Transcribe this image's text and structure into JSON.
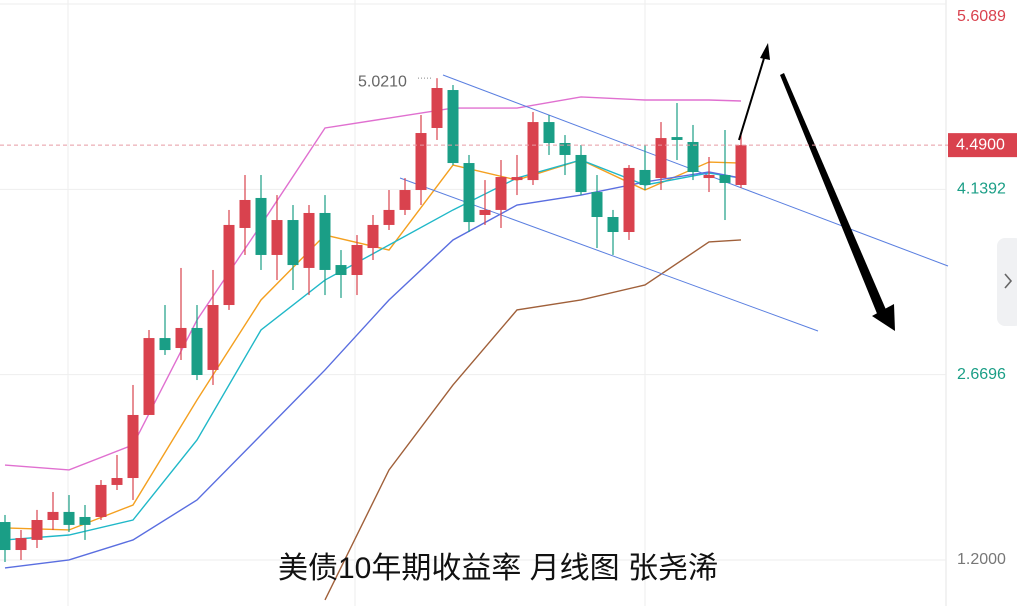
{
  "chart_data": {
    "type": "candlestick",
    "title": "美债10年期收益率 月线图 张尧浠",
    "ylim": [
      0.835,
      5.641
    ],
    "yticks": [
      {
        "value": 5.6089,
        "label": "5.6089",
        "color": "#d9424e"
      },
      {
        "value": 4.1392,
        "label": "4.1392",
        "color": "#1a9e86"
      },
      {
        "value": 2.6696,
        "label": "2.6696",
        "color": "#1a9e86"
      },
      {
        "value": 1.2,
        "label": "1.2000",
        "color": "#777777"
      }
    ],
    "last_price": {
      "value": 4.49,
      "label": "4.4900"
    },
    "max_label": {
      "value": 5.021,
      "label": "5.0210"
    },
    "up_color": "#d9424e",
    "down_color": "#1a9e86",
    "candles": {
      "open": [
        1.501,
        1.279,
        1.359,
        1.517,
        1.581,
        1.541,
        1.541,
        1.795,
        1.85,
        2.35,
        2.96,
        2.881,
        3.04,
        2.707,
        3.222,
        3.833,
        4.071,
        3.619,
        3.896,
        3.516,
        3.952,
        3.539,
        3.46,
        3.674,
        3.857,
        3.976,
        4.134,
        4.626,
        4.927,
        4.348,
        3.936,
        3.976,
        4.213,
        4.213,
        4.673,
        4.507,
        4.412,
        4.118,
        3.92,
        3.801,
        4.293,
        4.229,
        4.554,
        4.515,
        4.229,
        4.253,
        4.174
      ],
      "high": [
        1.557,
        1.438,
        1.597,
        1.739,
        1.715,
        1.636,
        1.834,
        2.033,
        2.588,
        3.024,
        3.222,
        3.516,
        3.222,
        3.5,
        3.976,
        4.253,
        4.253,
        4.094,
        4.015,
        4.015,
        4.094,
        3.658,
        3.777,
        3.936,
        4.134,
        4.229,
        4.729,
        5.021,
        4.967,
        4.412,
        4.213,
        4.372,
        4.412,
        4.753,
        4.729,
        4.57,
        4.491,
        4.253,
        3.976,
        4.332,
        4.491,
        4.673,
        4.824,
        4.65,
        4.396,
        4.61,
        4.586
      ],
      "low": [
        1.184,
        1.2,
        1.295,
        1.438,
        1.422,
        1.359,
        1.517,
        1.755,
        1.676,
        2.35,
        2.826,
        2.786,
        2.627,
        2.588,
        3.183,
        3.619,
        3.5,
        3.42,
        3.341,
        3.301,
        3.301,
        3.278,
        3.301,
        3.579,
        3.817,
        3.936,
        4.015,
        4.531,
        4.332,
        3.801,
        3.857,
        3.833,
        4.094,
        4.174,
        4.412,
        4.253,
        4.094,
        3.674,
        3.619,
        3.738,
        4.134,
        4.134,
        4.372,
        4.213,
        4.118,
        3.896,
        4.15
      ],
      "close": [
        1.279,
        1.374,
        1.517,
        1.581,
        1.478,
        1.478,
        1.795,
        1.85,
        2.35,
        2.96,
        2.865,
        3.04,
        2.667,
        3.222,
        3.857,
        4.055,
        3.619,
        3.896,
        3.539,
        3.952,
        3.5,
        3.46,
        3.698,
        3.857,
        3.976,
        4.134,
        4.586,
        4.943,
        4.348,
        3.88,
        3.976,
        4.237,
        4.237,
        4.673,
        4.507,
        4.412,
        4.118,
        3.92,
        3.801,
        4.309,
        4.174,
        4.546,
        4.531,
        4.277,
        4.253,
        4.19,
        4.49
      ]
    },
    "lines": [
      {
        "color": "#e070d0",
        "x": [
          0,
          4,
          8,
          12,
          16,
          20,
          24,
          28,
          32,
          36,
          40,
          44,
          46
        ],
        "values": [
          1.953,
          1.914,
          2.112,
          3.103,
          3.857,
          4.626,
          4.705,
          4.784,
          4.784,
          4.872,
          4.848,
          4.848,
          4.84
        ]
      },
      {
        "color": "#f4a020",
        "x": [
          0,
          4,
          8,
          12,
          16,
          20,
          24,
          28,
          32,
          36,
          40,
          44,
          46
        ],
        "values": [
          1.454,
          1.438,
          1.636,
          2.469,
          3.262,
          3.777,
          3.658,
          4.332,
          4.213,
          4.372,
          4.134,
          4.356,
          4.348
        ]
      },
      {
        "color": "#20b8c8",
        "x": [
          0,
          4,
          8,
          12,
          16,
          20,
          24,
          28,
          32,
          36,
          40,
          44,
          46
        ],
        "values": [
          1.359,
          1.398,
          1.517,
          2.152,
          3.024,
          3.42,
          3.698,
          3.976,
          4.229,
          4.372,
          4.174,
          4.269,
          4.229
        ]
      },
      {
        "color": "#5a6ee0",
        "x": [
          0,
          4,
          8,
          12,
          16,
          20,
          24,
          28,
          32,
          36,
          40,
          44,
          46
        ],
        "values": [
          1.137,
          1.2,
          1.359,
          1.676,
          2.191,
          2.707,
          3.262,
          3.738,
          4.015,
          4.094,
          4.198,
          4.277,
          4.229
        ]
      },
      {
        "color": "#a0603a",
        "x": [
          20,
          24,
          28,
          32,
          36,
          40,
          44,
          46
        ],
        "values": [
          0.883,
          1.914,
          2.588,
          3.183,
          3.262,
          3.381,
          3.722,
          3.738
        ]
      }
    ],
    "grid": true
  }
}
